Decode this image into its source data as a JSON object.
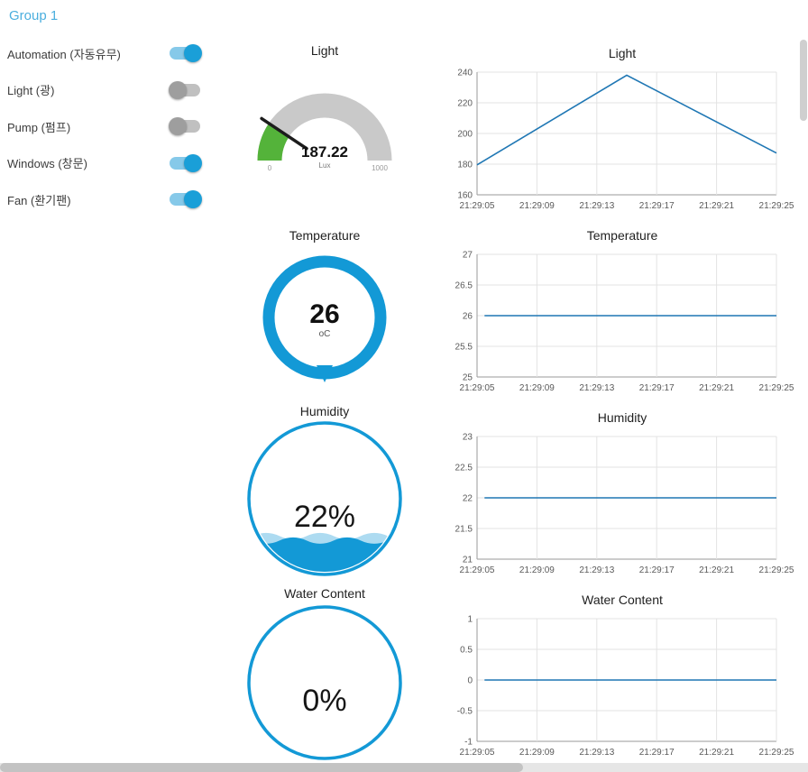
{
  "group": {
    "title": "Group 1"
  },
  "colors": {
    "accent_blue": "#1399d6",
    "title_blue": "#4aaede",
    "toggle_on_knob": "#1a9fd8",
    "toggle_on_track": "#86c9e9",
    "toggle_off_knob": "#9e9e9e",
    "gauge_track_gray": "#c9c9c9",
    "gauge_level_green": "#54b33a",
    "chart_line_blue": "#1f77b4"
  },
  "switches": [
    {
      "label": "Automation (자동유무)",
      "on": true
    },
    {
      "label": "Light (광)",
      "on": false
    },
    {
      "label": "Pump (펌프)",
      "on": false
    },
    {
      "label": "Windows (창문)",
      "on": true
    },
    {
      "label": "Fan (환기팬)",
      "on": true
    }
  ],
  "gauges": {
    "light": {
      "title": "Light",
      "value": 187.22,
      "units": "Lux",
      "min": 0,
      "max": 1000,
      "color": "#54b33a"
    },
    "temperature": {
      "title": "Temperature",
      "value": 26,
      "units": "oC"
    },
    "humidity": {
      "title": "Humidity",
      "value_label": "22%",
      "percent": 22
    },
    "water": {
      "title": "Water Content",
      "value_label": "0%",
      "percent": 0
    }
  },
  "chart_data": [
    {
      "type": "line",
      "title": "Light",
      "x_labels": [
        "21:29:05",
        "21:29:09",
        "21:29:13",
        "21:29:17",
        "21:29:21",
        "21:29:25"
      ],
      "y_ticks": [
        "240",
        "220",
        "200",
        "180",
        "160"
      ],
      "ylim": [
        160,
        240
      ],
      "xlim": [
        0,
        20
      ],
      "grid": true,
      "legend": false,
      "series": [
        {
          "name": "Light",
          "color": "#1f77b4",
          "points": [
            [
              0,
              179.5
            ],
            [
              10,
              238
            ],
            [
              20,
              187.22
            ]
          ]
        }
      ]
    },
    {
      "type": "line",
      "title": "Temperature",
      "x_labels": [
        "21:29:05",
        "21:29:09",
        "21:29:13",
        "21:29:17",
        "21:29:21",
        "21:29:25"
      ],
      "y_ticks": [
        "27",
        "26.5",
        "26",
        "25.5",
        "25"
      ],
      "ylim": [
        25,
        27
      ],
      "xlim": [
        0,
        20
      ],
      "grid": true,
      "legend": false,
      "series": [
        {
          "name": "Temperature",
          "color": "#1f77b4",
          "points": [
            [
              0.5,
              26
            ],
            [
              20,
              26
            ]
          ]
        }
      ]
    },
    {
      "type": "line",
      "title": "Humidity",
      "x_labels": [
        "21:29:05",
        "21:29:09",
        "21:29:13",
        "21:29:17",
        "21:29:21",
        "21:29:25"
      ],
      "y_ticks": [
        "23",
        "22.5",
        "22",
        "21.5",
        "21"
      ],
      "ylim": [
        21,
        23
      ],
      "xlim": [
        0,
        20
      ],
      "grid": true,
      "legend": false,
      "series": [
        {
          "name": "Humidity",
          "color": "#1f77b4",
          "points": [
            [
              0.5,
              22
            ],
            [
              20,
              22
            ]
          ]
        }
      ]
    },
    {
      "type": "line",
      "title": "Water Content",
      "x_labels": [
        "21:29:05",
        "21:29:09",
        "21:29:13",
        "21:29:17",
        "21:29:21",
        "21:29:25"
      ],
      "y_ticks": [
        "1",
        "0.5",
        "0",
        "-0.5",
        "-1"
      ],
      "ylim": [
        -1,
        1
      ],
      "xlim": [
        0,
        20
      ],
      "grid": true,
      "legend": false,
      "series": [
        {
          "name": "Water Content",
          "color": "#1f77b4",
          "points": [
            [
              0.5,
              0
            ],
            [
              20,
              0
            ]
          ]
        }
      ]
    }
  ]
}
